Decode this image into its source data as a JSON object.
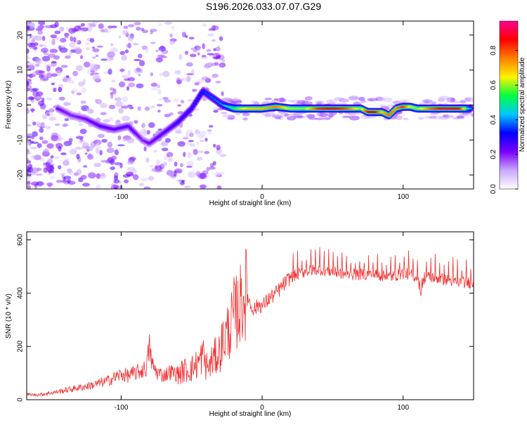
{
  "title": "S196.2026.033.07.07.G29",
  "chart_data": [
    {
      "type": "heatmap",
      "name": "spectrogram",
      "xlabel": "Height of straight line (km)",
      "ylabel": "Frequency (Hz)",
      "xlim": [
        -167,
        150
      ],
      "ylim": [
        -24,
        24
      ],
      "xticks": [
        -100,
        0,
        100
      ],
      "xtick_labels": [
        "-100",
        "0",
        "100"
      ],
      "yticks": [
        -20,
        -10,
        0,
        10,
        20
      ],
      "ytick_labels": [
        "-20",
        "-10",
        "0",
        "10",
        "20"
      ],
      "ridge": {
        "x": [
          -145,
          -135,
          -125,
          -115,
          -105,
          -95,
          -85,
          -80,
          -70,
          -60,
          -50,
          -42,
          -35,
          -28,
          -20,
          -10,
          0,
          10,
          20,
          30,
          40,
          50,
          60,
          70,
          75,
          80,
          85,
          90,
          95,
          100,
          105,
          110,
          120,
          130,
          140,
          148
        ],
        "y": [
          -1,
          -3,
          -4,
          -6,
          -7,
          -6,
          -10,
          -11,
          -8,
          -5,
          -1,
          4,
          2,
          0,
          -1,
          -1,
          -1,
          -0.5,
          -1,
          -1,
          -1,
          -1,
          -1,
          -1,
          -2,
          -2,
          -2,
          -3,
          -1,
          -0.5,
          -0.5,
          -1,
          -1,
          -1,
          -1,
          -1
        ],
        "amplitude": [
          0.22,
          0.2,
          0.22,
          0.25,
          0.24,
          0.25,
          0.2,
          0.22,
          0.25,
          0.28,
          0.3,
          0.35,
          0.38,
          0.4,
          0.55,
          0.7,
          0.72,
          0.78,
          0.62,
          0.6,
          0.85,
          0.9,
          0.82,
          0.6,
          0.88,
          0.9,
          0.7,
          0.8,
          0.75,
          0.85,
          0.65,
          0.6,
          0.8,
          0.92,
          0.88,
          0.4
        ]
      },
      "colorbar": {
        "label": "Normalized spectral amplitude",
        "range": [
          0.0,
          0.97
        ],
        "ticks": [
          0.0,
          0.2,
          0.4,
          0.6,
          0.8
        ],
        "tick_labels": [
          "0.0",
          "0.2",
          "0.4",
          "0.6",
          "0.8"
        ],
        "colors": [
          "#ffffff",
          "#c9a8ff",
          "#7a00ff",
          "#0000ff",
          "#00c8ff",
          "#00ff40",
          "#fff200",
          "#ff8000",
          "#ff0000",
          "#ff0090"
        ]
      }
    },
    {
      "type": "line",
      "name": "snr",
      "xlabel": "Height of straight line (km)",
      "ylabel": "SNR (10 * v/v)",
      "xlim": [
        -167,
        150
      ],
      "ylim": [
        0,
        630
      ],
      "xticks": [
        -100,
        0,
        100
      ],
      "xtick_labels": [
        "-100",
        "0",
        "100"
      ],
      "yticks": [
        0,
        200,
        400,
        600
      ],
      "ytick_labels": [
        "0",
        "200",
        "400",
        "600"
      ],
      "color": "#f03030",
      "series": [
        {
          "name": "SNR",
          "x": [
            -167,
            -160,
            -150,
            -140,
            -130,
            -120,
            -110,
            -100,
            -95,
            -90,
            -85,
            -82,
            -80,
            -78,
            -75,
            -70,
            -65,
            -60,
            -55,
            -50,
            -45,
            -42,
            -40,
            -38,
            -35,
            -30,
            -28,
            -25,
            -22,
            -20,
            -18,
            -15,
            -12,
            -10,
            -8,
            -5,
            -2,
            0,
            5,
            10,
            15,
            20,
            25,
            30,
            40,
            50,
            60,
            70,
            80,
            90,
            100,
            105,
            110,
            113,
            115,
            120,
            130,
            140,
            150
          ],
          "y": [
            20,
            18,
            25,
            35,
            45,
            55,
            70,
            95,
            90,
            100,
            110,
            120,
            200,
            130,
            105,
            90,
            105,
            95,
            110,
            115,
            140,
            170,
            130,
            120,
            150,
            180,
            220,
            250,
            280,
            320,
            330,
            360,
            400,
            390,
            350,
            340,
            360,
            350,
            380,
            400,
            430,
            460,
            470,
            480,
            490,
            480,
            470,
            470,
            470,
            460,
            475,
            470,
            460,
            400,
            460,
            460,
            450,
            440,
            440
          ]
        }
      ]
    }
  ]
}
